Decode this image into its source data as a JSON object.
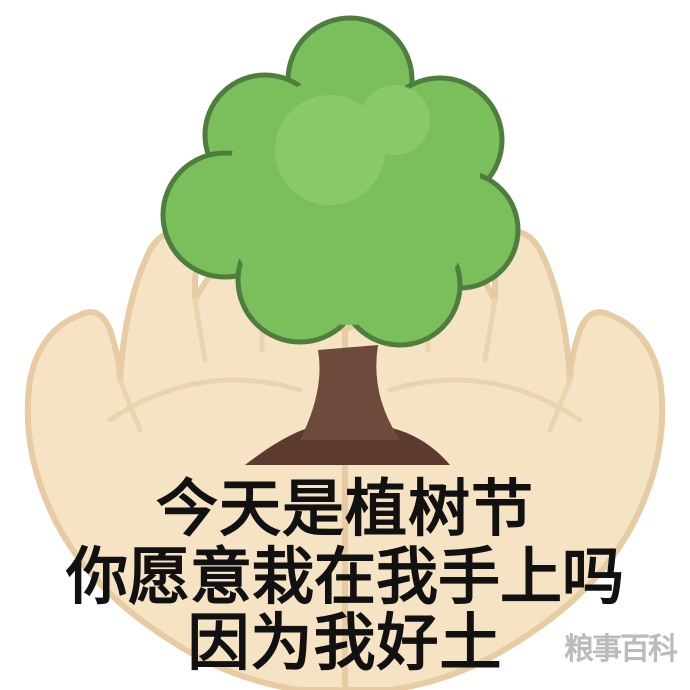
{
  "caption": {
    "line1": "今天是植树节",
    "line2": "你愿意栽在我手上吗",
    "line3": "因为我好土"
  },
  "watermark": "粮事百科",
  "illustration": {
    "subject_icon": "tree-icon",
    "hands_icon": "open-palms-icon",
    "colors": {
      "foliage": "#7bbf5c",
      "foliage_outline": "#4f7d3e",
      "trunk": "#6e4a3c",
      "hands": "#f6e3c4",
      "hands_outline": "#e0c39a"
    }
  }
}
